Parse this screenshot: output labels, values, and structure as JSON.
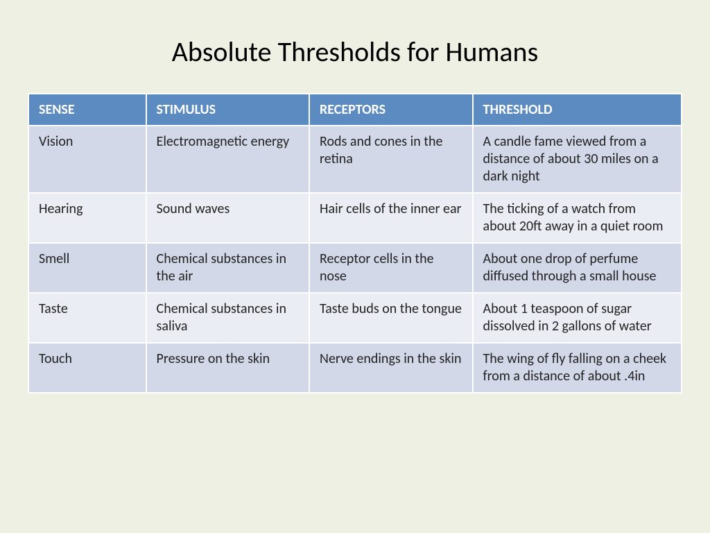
{
  "title": "Absolute Thresholds for Humans",
  "table": {
    "type": "table",
    "header_bg": "#5b8bc1",
    "header_fg": "#ffffff",
    "row_odd_bg": "#d2d8e8",
    "row_even_bg": "#eaedf4",
    "cell_text_color": "#222222",
    "border_color": "#ffffff",
    "font_size": 20,
    "columns": [
      {
        "label": "SENSE",
        "width_pct": 18
      },
      {
        "label": "STIMULUS",
        "width_pct": 25
      },
      {
        "label": "RECEPTORS",
        "width_pct": 25
      },
      {
        "label": "THRESHOLD",
        "width_pct": 32
      }
    ],
    "rows": [
      [
        "Vision",
        "Electromagnetic energy",
        "Rods and cones in the retina",
        "A candle fame viewed from a  distance of about 30 miles on a dark night"
      ],
      [
        "Hearing",
        "Sound waves",
        "Hair cells of the inner ear",
        "The ticking of a watch from about 20ft away in a quiet room"
      ],
      [
        "Smell",
        "Chemical substances in the air",
        "Receptor cells in the nose",
        "About one drop of perfume diffused through a small house"
      ],
      [
        "Taste",
        "Chemical substances in saliva",
        "Taste buds on the tongue",
        "About 1 teaspoon of sugar dissolved in 2 gallons of water"
      ],
      [
        "Touch",
        "Pressure on the skin",
        "Nerve endings in the skin",
        "The wing of fly falling on a cheek from a distance of about .4in"
      ]
    ]
  },
  "page_bg": "#eef0e4",
  "title_fontsize": 40,
  "title_color": "#000000"
}
